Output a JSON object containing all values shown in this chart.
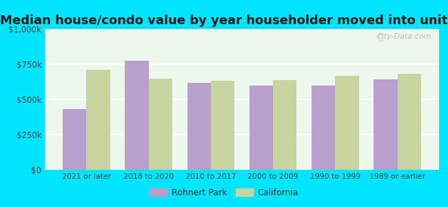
{
  "title": "Median house/condo value by year householder moved into unit",
  "categories": [
    "2021 or later",
    "2018 to 2020",
    "2010 to 2017",
    "2000 to 2009",
    "1990 to 1999",
    "1989 or earlier"
  ],
  "rohnert_park": [
    430000,
    775000,
    620000,
    600000,
    600000,
    640000
  ],
  "california": [
    710000,
    645000,
    630000,
    635000,
    665000,
    680000
  ],
  "rohnert_park_color": "#b89fcc",
  "california_color": "#c8d4a0",
  "background_color": "#00e5ff",
  "plot_bg_color": "#eef7ee",
  "ylim": [
    0,
    1000000
  ],
  "yticks": [
    0,
    250000,
    500000,
    750000,
    1000000
  ],
  "ytick_labels": [
    "$0",
    "$250k",
    "$500k",
    "$750k",
    "$1,000k"
  ],
  "title_fontsize": 13,
  "legend_labels": [
    "Rohnert Park",
    "California"
  ],
  "watermark": "City-Data.com"
}
